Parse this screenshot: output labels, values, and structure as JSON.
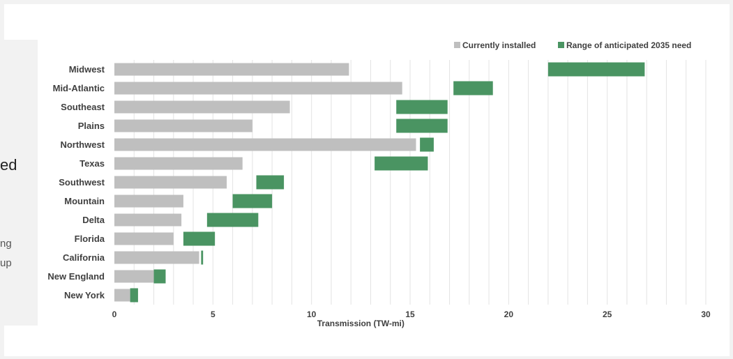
{
  "side_text": {
    "fragment_1": "ed",
    "fragment_2": "ng",
    "fragment_3": "up"
  },
  "chart_data": {
    "type": "bar",
    "orientation": "horizontal",
    "title": "",
    "xlabel": "Transmission (TW-mi)",
    "ylabel": "",
    "xlim": [
      0,
      30
    ],
    "x_ticks": [
      0,
      5,
      10,
      15,
      20,
      25,
      30
    ],
    "grid": true,
    "legend_position": "top-right",
    "categories": [
      "Midwest",
      "Mid-Atlantic",
      "Southeast",
      "Plains",
      "Northwest",
      "Texas",
      "Southwest",
      "Mountain",
      "Delta",
      "Florida",
      "California",
      "New England",
      "New York"
    ],
    "series": [
      {
        "name": "Currently installed",
        "color": "#bfbfbf",
        "values": [
          11.9,
          14.6,
          8.9,
          7.0,
          15.3,
          6.5,
          5.7,
          3.5,
          3.4,
          3.0,
          4.3,
          2.0,
          0.8
        ]
      },
      {
        "name": "Range of anticipated 2035 need",
        "color": "#4a9462",
        "ranges": [
          [
            22.0,
            26.9
          ],
          [
            17.2,
            19.2
          ],
          [
            14.3,
            16.9
          ],
          [
            14.3,
            16.9
          ],
          [
            15.5,
            16.2
          ],
          [
            13.2,
            15.9
          ],
          [
            7.2,
            8.6
          ],
          [
            6.0,
            8.0
          ],
          [
            4.7,
            7.3
          ],
          [
            3.5,
            5.1
          ],
          [
            4.4,
            4.5
          ],
          [
            2.0,
            2.6
          ],
          [
            0.8,
            1.2
          ]
        ]
      }
    ]
  }
}
